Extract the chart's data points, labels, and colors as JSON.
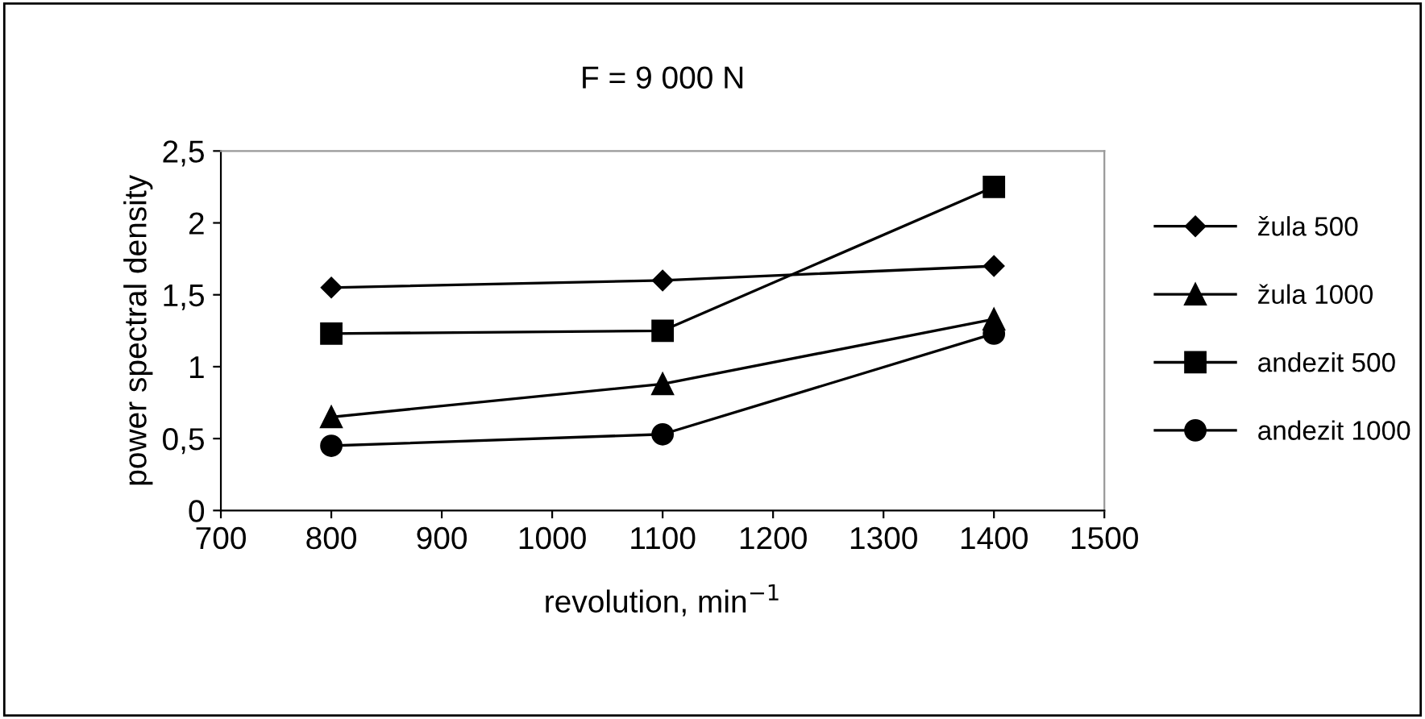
{
  "chart_data": {
    "type": "line",
    "title": "F = 9 000 N",
    "xlabel": "revolution, min$^{−1}$",
    "ylabel": "power spectral density",
    "x": [
      800,
      1100,
      1400
    ],
    "series": [
      {
        "name": "žula 500",
        "color": "#000000",
        "marker": "diamond",
        "values": [
          1.55,
          1.6,
          1.7
        ]
      },
      {
        "name": "žula 1000",
        "color": "#000000",
        "marker": "triangle",
        "values": [
          0.65,
          0.88,
          1.33
        ]
      },
      {
        "name": "andezit 500",
        "color": "#000000",
        "marker": "square",
        "values": [
          1.23,
          1.25,
          2.25
        ]
      },
      {
        "name": "andezit 1000",
        "color": "#000000",
        "marker": "circle",
        "values": [
          0.45,
          0.53,
          1.23
        ]
      }
    ],
    "xlim": [
      700,
      1500
    ],
    "xticks": [
      700,
      800,
      900,
      1000,
      1100,
      1200,
      1300,
      1400,
      1500
    ],
    "ylim": [
      0,
      2.5
    ],
    "yticks": [
      0,
      {
        "value": 0.5,
        "label": "0,5"
      },
      1,
      {
        "value": 1.5,
        "label": "1,5"
      },
      2,
      {
        "value": 2.5,
        "label": "2,5"
      }
    ],
    "grid": false,
    "legend": "right",
    "line_style": "solid"
  }
}
